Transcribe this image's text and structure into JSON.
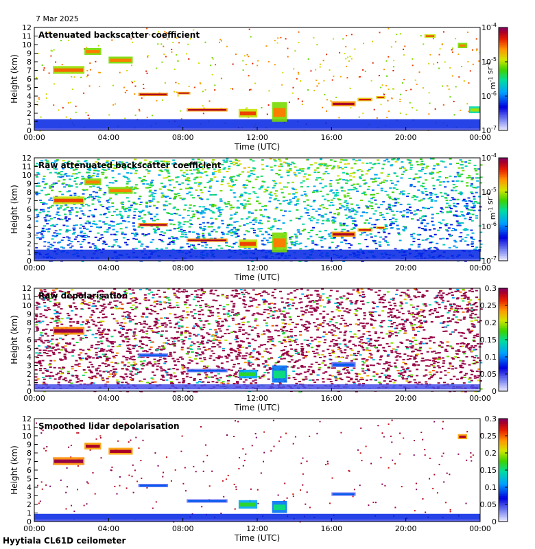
{
  "date": "7 Mar 2025",
  "footer": "Hyytiala CL61D ceilometer",
  "chart_data": [
    {
      "type": "heatmap",
      "title": "Attenuated backscatter coefficient",
      "xlabel": "Time (UTC)",
      "ylabel": "Height (km)",
      "x_ticks": [
        "00:00",
        "04:00",
        "08:00",
        "12:00",
        "16:00",
        "20:00",
        "00:00"
      ],
      "y_ticks": [
        0,
        1,
        2,
        3,
        4,
        5,
        6,
        7,
        8,
        9,
        10,
        11,
        12
      ],
      "ylim": [
        0,
        12
      ],
      "xlim_hours": [
        0,
        24
      ],
      "colorbar": {
        "scale": "log",
        "range": [
          1e-07,
          0.0001
        ],
        "ticks": [
          "10^-7",
          "10^-6",
          "10^-5",
          "10^-4"
        ],
        "unit": "m^-1 sr^-1"
      },
      "background_noise": "low",
      "layers": [
        {
          "t0": 0.0,
          "t1": 24.0,
          "h0": 0.0,
          "h1": 1.3,
          "v": 0.25,
          "kind": "boundary"
        },
        {
          "t0": 1.0,
          "t1": 2.7,
          "h0": 6.6,
          "h1": 7.5,
          "v": 0.82
        },
        {
          "t0": 2.7,
          "t1": 3.6,
          "h0": 8.8,
          "h1": 9.6,
          "v": 0.8
        },
        {
          "t0": 4.0,
          "t1": 5.3,
          "h0": 7.8,
          "h1": 8.6,
          "v": 0.8
        },
        {
          "t0": 5.6,
          "t1": 7.2,
          "h0": 4.0,
          "h1": 4.4,
          "v": 0.95
        },
        {
          "t0": 7.7,
          "t1": 8.4,
          "h0": 4.2,
          "h1": 4.5,
          "v": 0.95
        },
        {
          "t0": 8.2,
          "t1": 10.4,
          "h0": 2.2,
          "h1": 2.6,
          "v": 0.95
        },
        {
          "t0": 11.0,
          "t1": 12.0,
          "h0": 1.5,
          "h1": 2.5,
          "v": 0.85
        },
        {
          "t0": 12.8,
          "t1": 13.6,
          "h0": 1.0,
          "h1": 3.3,
          "v": 0.8
        },
        {
          "t0": 16.0,
          "t1": 17.3,
          "h0": 2.8,
          "h1": 3.4,
          "v": 0.95
        },
        {
          "t0": 17.4,
          "t1": 18.2,
          "h0": 3.4,
          "h1": 3.8,
          "v": 0.9
        },
        {
          "t0": 18.4,
          "t1": 18.9,
          "h0": 3.7,
          "h1": 4.0,
          "v": 0.9
        },
        {
          "t0": 21.0,
          "t1": 21.6,
          "h0": 10.8,
          "h1": 11.2,
          "v": 0.85
        },
        {
          "t0": 22.8,
          "t1": 23.3,
          "h0": 9.6,
          "h1": 10.2,
          "v": 0.8
        },
        {
          "t0": 23.4,
          "t1": 24.0,
          "h0": 2.0,
          "h1": 2.8,
          "v": 0.65
        }
      ]
    },
    {
      "type": "heatmap",
      "title": "Raw attenuated backscatter coefficient",
      "xlabel": "Time (UTC)",
      "ylabel": "Height (km)",
      "x_ticks": [
        "00:00",
        "04:00",
        "08:00",
        "12:00",
        "16:00",
        "20:00",
        "00:00"
      ],
      "y_ticks": [
        0,
        1,
        2,
        3,
        4,
        5,
        6,
        7,
        8,
        9,
        10,
        11,
        12
      ],
      "ylim": [
        0,
        12
      ],
      "xlim_hours": [
        0,
        24
      ],
      "colorbar": {
        "scale": "log",
        "range": [
          1e-07,
          0.0001
        ],
        "ticks": [
          "10^-7",
          "10^-6",
          "10^-5",
          "10^-4"
        ],
        "unit": "m^-1 sr^-1"
      },
      "background_noise": "high",
      "layers": [
        {
          "t0": 0.0,
          "t1": 24.0,
          "h0": 0.0,
          "h1": 1.3,
          "v": 0.25,
          "kind": "boundary"
        },
        {
          "t0": 1.0,
          "t1": 2.7,
          "h0": 6.6,
          "h1": 7.5,
          "v": 0.85
        },
        {
          "t0": 2.7,
          "t1": 3.6,
          "h0": 8.8,
          "h1": 9.6,
          "v": 0.8
        },
        {
          "t0": 4.0,
          "t1": 5.3,
          "h0": 7.8,
          "h1": 8.6,
          "v": 0.8
        },
        {
          "t0": 5.6,
          "t1": 7.2,
          "h0": 4.0,
          "h1": 4.4,
          "v": 0.95
        },
        {
          "t0": 8.2,
          "t1": 10.4,
          "h0": 2.2,
          "h1": 2.6,
          "v": 0.95
        },
        {
          "t0": 11.0,
          "t1": 12.0,
          "h0": 1.5,
          "h1": 2.5,
          "v": 0.85
        },
        {
          "t0": 12.8,
          "t1": 13.6,
          "h0": 1.0,
          "h1": 3.3,
          "v": 0.8
        },
        {
          "t0": 16.0,
          "t1": 17.3,
          "h0": 2.8,
          "h1": 3.4,
          "v": 0.95
        },
        {
          "t0": 17.4,
          "t1": 18.2,
          "h0": 3.4,
          "h1": 3.8,
          "v": 0.9
        },
        {
          "t0": 18.4,
          "t1": 18.9,
          "h0": 3.7,
          "h1": 4.0,
          "v": 0.9
        }
      ]
    },
    {
      "type": "heatmap",
      "title": "Raw depolarisation",
      "xlabel": "Time (UTC)",
      "ylabel": "Height (km)",
      "x_ticks": [
        "00:00",
        "04:00",
        "08:00",
        "12:00",
        "16:00",
        "20:00",
        "00:00"
      ],
      "y_ticks": [
        0,
        1,
        2,
        3,
        4,
        5,
        6,
        7,
        8,
        9,
        10,
        11,
        12
      ],
      "ylim": [
        0,
        12
      ],
      "xlim_hours": [
        0,
        24
      ],
      "colorbar": {
        "scale": "linear",
        "range": [
          0,
          0.3
        ],
        "ticks": [
          "0",
          "0.05",
          "0.1",
          "0.15",
          "0.2",
          "0.25",
          "0.3"
        ],
        "unit": ""
      },
      "background_noise": "speckle",
      "layers": [
        {
          "t0": 0.0,
          "t1": 24.0,
          "h0": 0.0,
          "h1": 0.8,
          "v": 0.15,
          "kind": "boundary"
        },
        {
          "t0": 1.0,
          "t1": 2.7,
          "h0": 6.6,
          "h1": 7.5,
          "v": 0.97
        },
        {
          "t0": 5.6,
          "t1": 7.2,
          "h0": 4.0,
          "h1": 4.4,
          "v": 0.3
        },
        {
          "t0": 8.2,
          "t1": 10.4,
          "h0": 2.2,
          "h1": 2.6,
          "v": 0.3
        },
        {
          "t0": 11.0,
          "t1": 12.0,
          "h0": 1.5,
          "h1": 2.5,
          "v": 0.55
        },
        {
          "t0": 12.8,
          "t1": 13.6,
          "h0": 1.0,
          "h1": 3.0,
          "v": 0.5
        },
        {
          "t0": 16.0,
          "t1": 17.3,
          "h0": 2.8,
          "h1": 3.4,
          "v": 0.3
        }
      ]
    },
    {
      "type": "heatmap",
      "title": "Smoothed lidar depolarisation",
      "xlabel": "Time (UTC)",
      "ylabel": "Height (km)",
      "x_ticks": [
        "00:00",
        "04:00",
        "08:00",
        "12:00",
        "16:00",
        "20:00",
        "00:00"
      ],
      "y_ticks": [
        0,
        1,
        2,
        3,
        4,
        5,
        6,
        7,
        8,
        9,
        10,
        11,
        12
      ],
      "ylim": [
        0,
        12
      ],
      "xlim_hours": [
        0,
        24
      ],
      "colorbar": {
        "scale": "linear",
        "range": [
          0,
          0.3
        ],
        "ticks": [
          "0",
          "0.05",
          "0.1",
          "0.15",
          "0.2",
          "0.25",
          "0.3"
        ],
        "unit": ""
      },
      "background_noise": "sparse",
      "layers": [
        {
          "t0": 0.0,
          "t1": 24.0,
          "h0": 0.0,
          "h1": 0.9,
          "v": 0.25,
          "kind": "boundary"
        },
        {
          "t0": 1.0,
          "t1": 2.7,
          "h0": 6.6,
          "h1": 7.5,
          "v": 0.97
        },
        {
          "t0": 2.7,
          "t1": 3.6,
          "h0": 8.4,
          "h1": 9.2,
          "v": 0.95
        },
        {
          "t0": 4.0,
          "t1": 5.3,
          "h0": 7.8,
          "h1": 8.6,
          "v": 0.95
        },
        {
          "t0": 5.6,
          "t1": 7.2,
          "h0": 4.0,
          "h1": 4.4,
          "v": 0.3
        },
        {
          "t0": 8.2,
          "t1": 10.4,
          "h0": 2.2,
          "h1": 2.6,
          "v": 0.3
        },
        {
          "t0": 11.0,
          "t1": 12.0,
          "h0": 1.5,
          "h1": 2.5,
          "v": 0.55
        },
        {
          "t0": 12.8,
          "t1": 13.6,
          "h0": 1.0,
          "h1": 2.4,
          "v": 0.5
        },
        {
          "t0": 16.0,
          "t1": 17.3,
          "h0": 3.0,
          "h1": 3.4,
          "v": 0.3
        },
        {
          "t0": 22.8,
          "t1": 23.3,
          "h0": 9.6,
          "h1": 10.2,
          "v": 0.95
        }
      ]
    }
  ]
}
